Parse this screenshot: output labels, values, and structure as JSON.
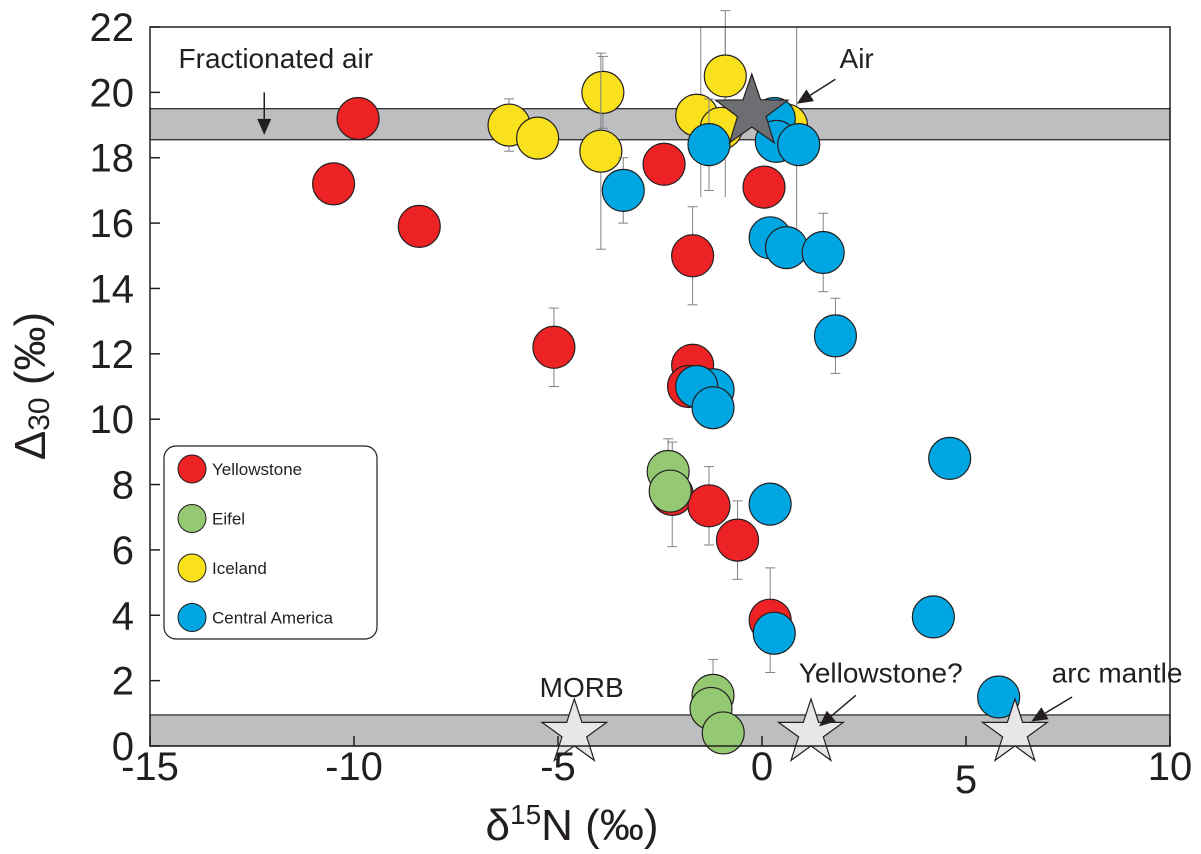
{
  "chart_data": {
    "type": "scatter",
    "xlabel": "δ¹⁵N (‰)",
    "xlabel_parts": {
      "delta": "δ",
      "sup": "15",
      "rest": "N (‰)"
    },
    "ylabel": "Δ30 (‰)",
    "ylabel_parts": {
      "delta": "Δ",
      "sub": "30",
      "rest": " (‰)"
    },
    "xlim": [
      -15,
      10
    ],
    "ylim": [
      0,
      22
    ],
    "xticks": [
      -15,
      -10,
      -5,
      0,
      5,
      10
    ],
    "xtick_labels": [
      "-15",
      "-10",
      "-5",
      "0",
      "5",
      "10"
    ],
    "yticks": [
      0,
      2,
      4,
      6,
      8,
      10,
      12,
      14,
      16,
      18,
      20,
      22
    ],
    "ytick_labels": [
      "0",
      "2",
      "4",
      "6",
      "8",
      "10",
      "12",
      "14",
      "16",
      "18",
      "20",
      "22"
    ],
    "grid": false,
    "legend_position": "left-middle",
    "bands": [
      {
        "name": "fractionated-air-band",
        "y0": 18.55,
        "y1": 19.5,
        "color": "#bcbec0"
      },
      {
        "name": "mantle-band",
        "y0": 0,
        "y1": 0.95,
        "color": "#bcbec0"
      }
    ],
    "series": [
      {
        "name": "Yellowstone",
        "color": "#ed2224",
        "points": [
          {
            "x": -10.5,
            "y": 17.2
          },
          {
            "x": -9.9,
            "y": 19.2
          },
          {
            "x": -8.4,
            "y": 15.9
          },
          {
            "x": -5.1,
            "y": 12.2,
            "err": 1.2
          },
          {
            "x": -2.4,
            "y": 17.8
          },
          {
            "x": -1.7,
            "y": 15.0,
            "err": 1.5
          },
          {
            "x": -1.7,
            "y": 11.65
          },
          {
            "x": -1.8,
            "y": 11.0
          },
          {
            "x": -2.2,
            "y": 7.7,
            "err": 1.6
          },
          {
            "x": -1.3,
            "y": 7.35,
            "err": 1.2
          },
          {
            "x": -0.6,
            "y": 6.3,
            "err": 1.2
          },
          {
            "x": 0.05,
            "y": 17.1
          },
          {
            "x": 0.2,
            "y": 3.85,
            "err": 1.6
          }
        ]
      },
      {
        "name": "Eifel",
        "color": "#94c873",
        "points": [
          {
            "x": -2.3,
            "y": 8.4,
            "err": 1.0
          },
          {
            "x": -2.25,
            "y": 7.8
          },
          {
            "x": -1.2,
            "y": 1.55,
            "err": 1.1
          },
          {
            "x": -1.25,
            "y": 1.15
          },
          {
            "x": -0.95,
            "y": 0.4
          }
        ]
      },
      {
        "name": "Iceland",
        "color": "#f9e11d",
        "points": [
          {
            "x": -6.2,
            "y": 19.0,
            "err": 0.8
          },
          {
            "x": -5.5,
            "y": 18.6
          },
          {
            "x": -3.9,
            "y": 20.0,
            "err": 1.1
          },
          {
            "x": -3.95,
            "y": 18.2,
            "err": 3.0
          },
          {
            "x": -1.6,
            "y": 19.3
          },
          {
            "x": -0.9,
            "y": 20.5,
            "err": 2.0
          },
          {
            "x": -1.0,
            "y": 18.9
          },
          {
            "x": 0.6,
            "y": 19.0
          }
        ]
      },
      {
        "name": "Central America",
        "color": "#00a6e2",
        "points": [
          {
            "x": -3.4,
            "y": 17.0,
            "err": 1.0
          },
          {
            "x": -1.3,
            "y": 18.4,
            "err": 1.4
          },
          {
            "x": 0.3,
            "y": 19.2
          },
          {
            "x": 0.35,
            "y": 18.5
          },
          {
            "x": 0.9,
            "y": 18.4
          },
          {
            "x": 0.2,
            "y": 15.55
          },
          {
            "x": 0.6,
            "y": 15.25
          },
          {
            "x": 1.5,
            "y": 15.1,
            "err": 1.2
          },
          {
            "x": 1.8,
            "y": 12.55,
            "err": 1.15
          },
          {
            "x": -1.2,
            "y": 10.9
          },
          {
            "x": -1.6,
            "y": 11.0
          },
          {
            "x": -1.2,
            "y": 10.35
          },
          {
            "x": 0.2,
            "y": 7.4
          },
          {
            "x": 4.6,
            "y": 8.8
          },
          {
            "x": 4.2,
            "y": 3.95
          },
          {
            "x": 0.3,
            "y": 3.45
          },
          {
            "x": 5.8,
            "y": 1.5
          }
        ]
      }
    ],
    "vertical_error_lines": [
      {
        "x": -1.5,
        "y0": 16.8,
        "y1": 22
      },
      {
        "x": -0.9,
        "y0": 16.8,
        "y1": 22
      },
      {
        "x": 0.85,
        "y0": 15.0,
        "y1": 22
      }
    ],
    "reference_stars": [
      {
        "name": "Air",
        "x": -0.25,
        "y": 19.4,
        "color": "#6d6e71"
      },
      {
        "name": "MORB",
        "x": -4.6,
        "y": 0.4,
        "color": "#e6e7e8"
      },
      {
        "name": "Yellowstone?",
        "x": 1.2,
        "y": 0.4,
        "color": "#e6e7e8"
      },
      {
        "name": "arc mantle",
        "x": 6.2,
        "y": 0.4,
        "color": "#e6e7e8"
      }
    ],
    "annotations": [
      {
        "name": "fractionated-air",
        "text": "Fractionated air",
        "x": -14.3,
        "y": 20.75,
        "arrow_from": [
          -12.2,
          20.0
        ],
        "arrow_to": [
          -12.2,
          18.7
        ]
      },
      {
        "name": "air",
        "text": "Air",
        "x": 1.9,
        "y": 20.75,
        "arrow_from": [
          1.8,
          20.4
        ],
        "arrow_to": [
          0.85,
          19.65
        ]
      },
      {
        "name": "morb",
        "text": "MORB",
        "x": -5.45,
        "y": 1.5
      },
      {
        "name": "yellowstone-q",
        "text": "Yellowstone?",
        "x": 0.9,
        "y": 1.95,
        "arrow_from": [
          2.3,
          1.55
        ],
        "arrow_to": [
          1.4,
          0.6
        ]
      },
      {
        "name": "arc-mantle",
        "text": "arc mantle",
        "x": 7.1,
        "y": 1.95,
        "arrow_from": [
          7.6,
          1.5
        ],
        "arrow_to": [
          6.6,
          0.75
        ]
      }
    ],
    "legend": [
      "Yellowstone",
      "Eifel",
      "Iceland",
      "Central America"
    ]
  }
}
